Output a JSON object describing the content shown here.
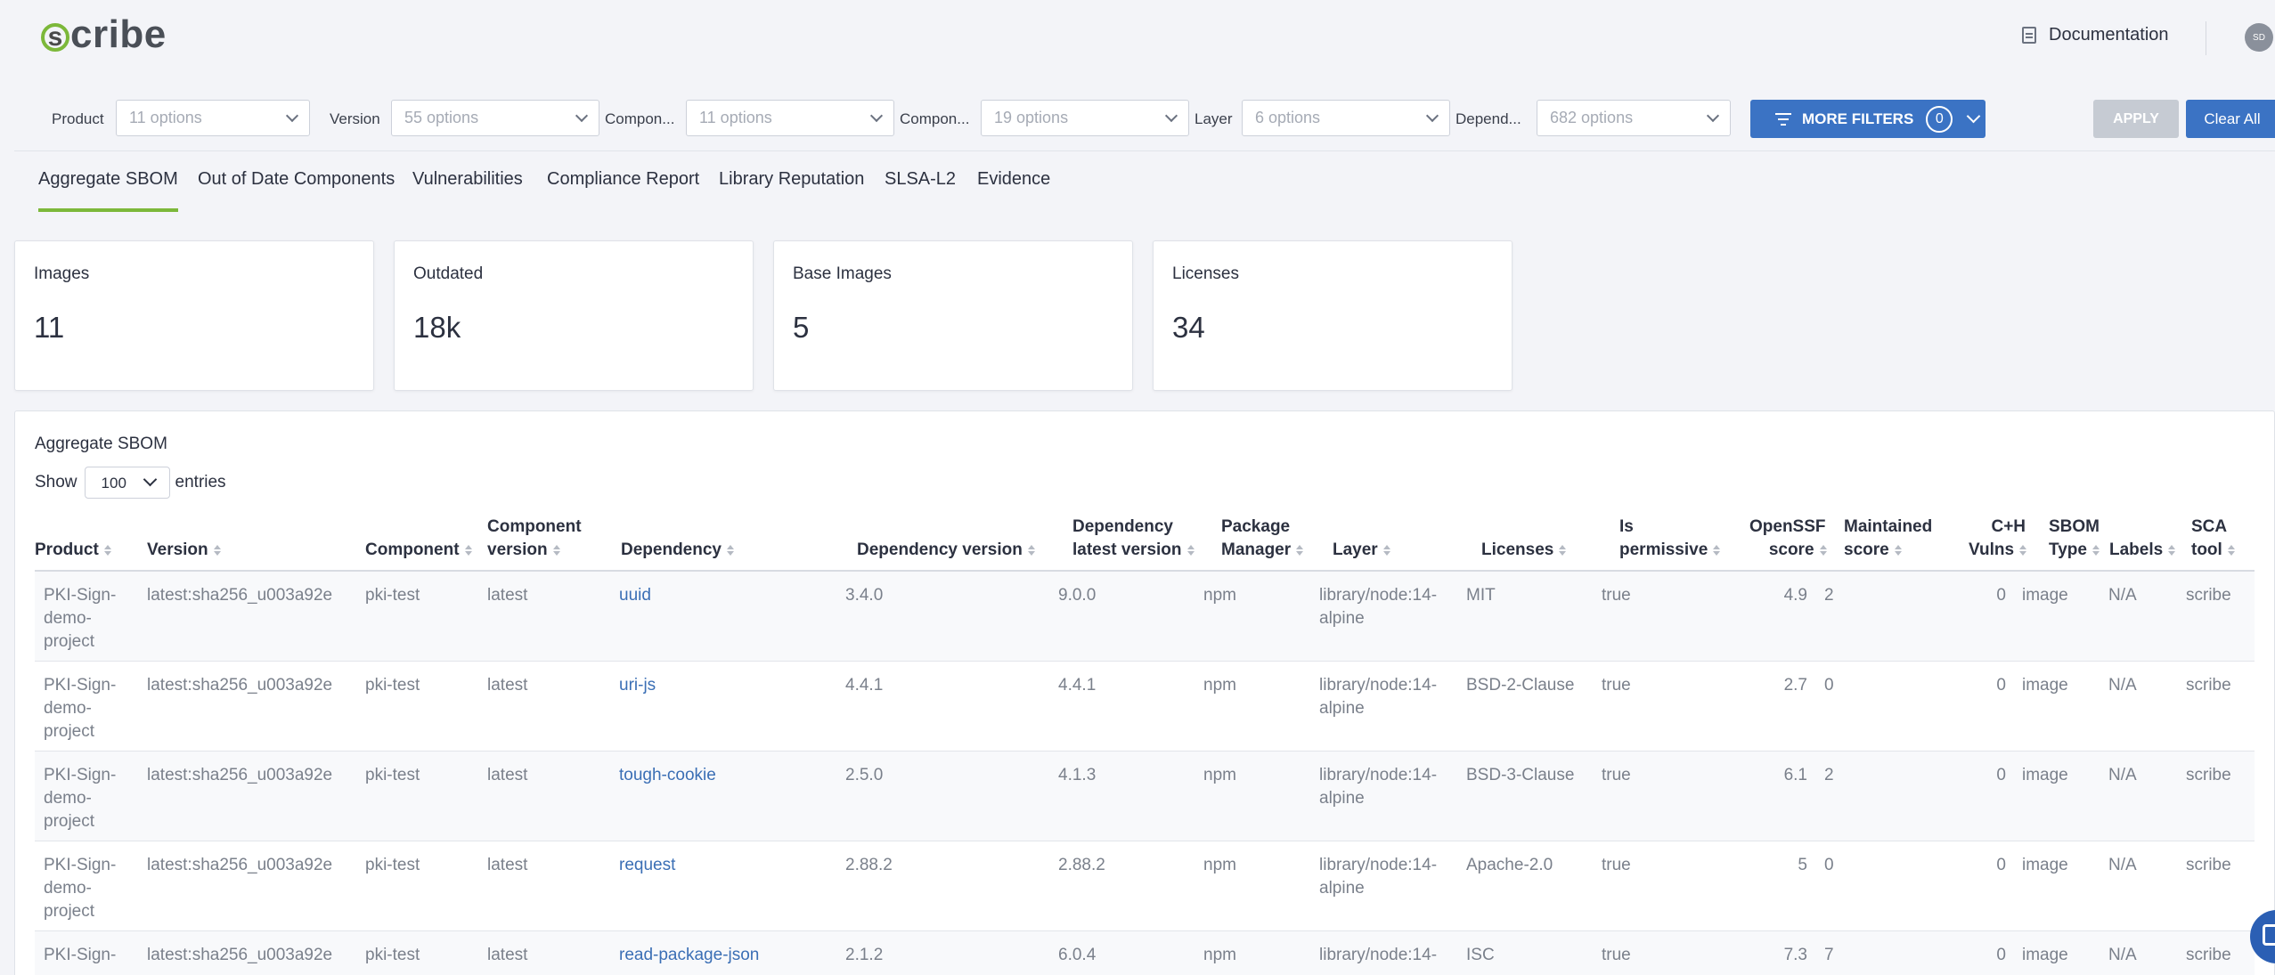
{
  "header": {
    "logo_initial": "s",
    "logo_text": "cribe",
    "documentation_label": "Documentation",
    "avatar_initials": "SD"
  },
  "filters": [
    {
      "label": "Product",
      "placeholder": "11 options"
    },
    {
      "label": "Version",
      "placeholder": "55 options"
    },
    {
      "label": "Compon...",
      "placeholder": "11 options"
    },
    {
      "label": "Compon...",
      "placeholder": "19 options"
    },
    {
      "label": "Layer",
      "placeholder": "6 options"
    },
    {
      "label": "Depend...",
      "placeholder": "682 options"
    }
  ],
  "more_filters": {
    "label": "MORE FILTERS",
    "count": "0"
  },
  "apply_label": "APPLY",
  "clear_label": "Clear All",
  "tabs": [
    "Aggregate SBOM",
    "Out of Date Components",
    "Vulnerabilities",
    "Compliance Report",
    "Library Reputation",
    "SLSA-L2",
    "Evidence"
  ],
  "cards": [
    {
      "label": "Images",
      "value": "11"
    },
    {
      "label": "Outdated",
      "value": "18k"
    },
    {
      "label": "Base Images",
      "value": "5"
    },
    {
      "label": "Licenses",
      "value": "34"
    }
  ],
  "table": {
    "title": "Aggregate SBOM",
    "show_label": "Show",
    "entries_value": "100",
    "entries_label": "entries",
    "headers": [
      [
        "Product"
      ],
      [
        "Version"
      ],
      [
        "Component"
      ],
      [
        "Component",
        "version"
      ],
      [
        "Dependency"
      ],
      [
        "Dependency version"
      ],
      [
        "Dependency",
        "latest version"
      ],
      [
        "Package",
        "Manager"
      ],
      [
        "Layer"
      ],
      [
        "Licenses"
      ],
      [
        "Is",
        "permissive"
      ],
      [
        "OpenSSF",
        "score"
      ],
      [
        "Maintained",
        "score"
      ],
      [
        "C+H",
        "Vulns"
      ],
      [
        "SBOM",
        "Type"
      ],
      [
        "Labels"
      ],
      [
        "SCA",
        "tool"
      ]
    ],
    "rows": [
      {
        "product": [
          "PKI-Sign-",
          "demo-",
          "project"
        ],
        "version": "latest:sha256_u003a92e",
        "component": "pki-test",
        "component_version": "latest",
        "dependency": "uuid",
        "dependency_version": "3.4.0",
        "latest_version": "9.0.0",
        "package_manager": "npm",
        "layer": [
          "library/node:14-",
          "alpine"
        ],
        "licenses": "MIT",
        "is_permissive": "true",
        "openssf": "4.9",
        "maintained": "2",
        "vulns": "0",
        "sbom_type": "image",
        "labels": "N/A",
        "sca_tool": "scribe"
      },
      {
        "product": [
          "PKI-Sign-",
          "demo-",
          "project"
        ],
        "version": "latest:sha256_u003a92e",
        "component": "pki-test",
        "component_version": "latest",
        "dependency": "uri-js",
        "dependency_version": "4.4.1",
        "latest_version": "4.4.1",
        "package_manager": "npm",
        "layer": [
          "library/node:14-",
          "alpine"
        ],
        "licenses": "BSD-2-Clause",
        "is_permissive": "true",
        "openssf": "2.7",
        "maintained": "0",
        "vulns": "0",
        "sbom_type": "image",
        "labels": "N/A",
        "sca_tool": "scribe"
      },
      {
        "product": [
          "PKI-Sign-",
          "demo-",
          "project"
        ],
        "version": "latest:sha256_u003a92e",
        "component": "pki-test",
        "component_version": "latest",
        "dependency": "tough-cookie",
        "dependency_version": "2.5.0",
        "latest_version": "4.1.3",
        "package_manager": "npm",
        "layer": [
          "library/node:14-",
          "alpine"
        ],
        "licenses": "BSD-3-Clause",
        "is_permissive": "true",
        "openssf": "6.1",
        "maintained": "2",
        "vulns": "0",
        "sbom_type": "image",
        "labels": "N/A",
        "sca_tool": "scribe"
      },
      {
        "product": [
          "PKI-Sign-",
          "demo-",
          "project"
        ],
        "version": "latest:sha256_u003a92e",
        "component": "pki-test",
        "component_version": "latest",
        "dependency": "request",
        "dependency_version": "2.88.2",
        "latest_version": "2.88.2",
        "package_manager": "npm",
        "layer": [
          "library/node:14-",
          "alpine"
        ],
        "licenses": "Apache-2.0",
        "is_permissive": "true",
        "openssf": "5",
        "maintained": "0",
        "vulns": "0",
        "sbom_type": "image",
        "labels": "N/A",
        "sca_tool": "scribe"
      },
      {
        "product": [
          "PKI-Sign-"
        ],
        "version": "latest:sha256_u003a92e",
        "component": "pki-test",
        "component_version": "latest",
        "dependency": "read-package-json",
        "dependency_version": "2.1.2",
        "latest_version": "6.0.4",
        "package_manager": "npm",
        "layer": [
          "library/node:14-"
        ],
        "licenses": "ISC",
        "is_permissive": "true",
        "openssf": "7.3",
        "maintained": "7",
        "vulns": "0",
        "sbom_type": "image",
        "labels": "N/A",
        "sca_tool": "scribe"
      }
    ]
  }
}
